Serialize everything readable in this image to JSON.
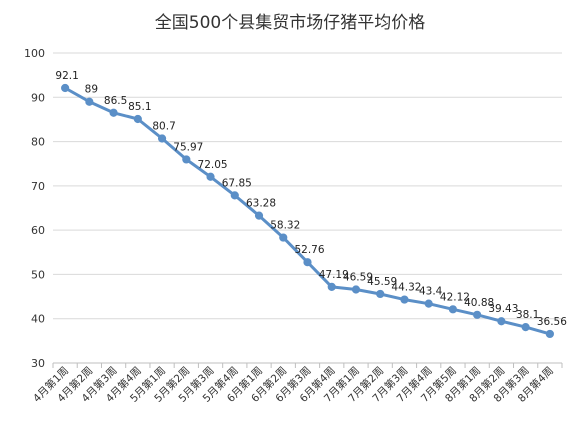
{
  "chart_data": {
    "type": "line",
    "title": "全国500个县集贸市场仔猪平均价格",
    "xlabel": "",
    "ylabel": "",
    "ylim": [
      30,
      100
    ],
    "yticks": [
      30,
      40,
      50,
      60,
      70,
      80,
      90,
      100
    ],
    "grid": true,
    "legend": "none",
    "color": "#5b8fc7",
    "categories": [
      "4月第1周",
      "4月第2周",
      "4月第3周",
      "4月第4周",
      "5月第1周",
      "5月第2周",
      "5月第3周",
      "5月第4周",
      "6月第1周",
      "6月第2周",
      "6月第3周",
      "6月第4周",
      "7月第1周",
      "7月第2周",
      "7月第3周",
      "7月第4周",
      "7月第5周",
      "8月第1周",
      "8月第2周",
      "8月第3周",
      "8月第4周"
    ],
    "values": [
      92.1,
      89,
      86.5,
      85.1,
      80.7,
      75.97,
      72.05,
      67.85,
      63.28,
      58.32,
      52.76,
      47.19,
      46.59,
      45.59,
      44.32,
      43.4,
      42.12,
      40.88,
      39.43,
      38.1,
      36.56
    ],
    "labels": [
      "92.1",
      "89",
      "86.5",
      "85.1",
      "80.7",
      "75.97",
      "72.05",
      "67.85",
      "63.28",
      "58.32",
      "52.76",
      "47.19",
      "46.59",
      "45.59",
      "44.32",
      "43.4",
      "42.12",
      "40.88",
      "39.43",
      "38.1",
      "36.56"
    ]
  }
}
